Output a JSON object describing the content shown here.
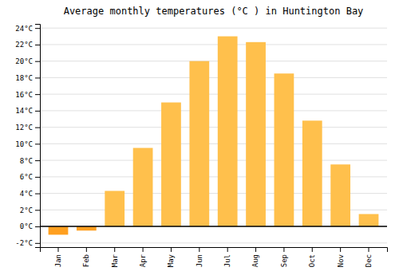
{
  "chart_data": {
    "type": "bar",
    "title": "Average monthly temperatures (°C ) in Huntington Bay",
    "categories": [
      "Jan",
      "Feb",
      "Mar",
      "Apr",
      "May",
      "Jun",
      "Jul",
      "Aug",
      "Sep",
      "Oct",
      "Nov",
      "Dec"
    ],
    "values": [
      -1.0,
      -0.5,
      4.3,
      9.5,
      15.0,
      20.0,
      23.0,
      22.3,
      18.5,
      12.8,
      7.5,
      1.5
    ],
    "colors": [
      "#FFA020",
      "#FFA020",
      "#FFC04C",
      "#FFC04C",
      "#FFC04C",
      "#FFC04C",
      "#FFC04C",
      "#FFC04C",
      "#FFC04C",
      "#FFC04C",
      "#FFC04C",
      "#FFC04C"
    ],
    "ylim": [
      -2.5,
      24.5
    ],
    "yticks": [
      {
        "value": -2,
        "label": "-2°C"
      },
      {
        "value": 0,
        "label": "0°C"
      },
      {
        "value": 2,
        "label": "2°C"
      },
      {
        "value": 4,
        "label": "4°C"
      },
      {
        "value": 6,
        "label": "6°C"
      },
      {
        "value": 8,
        "label": "8°C"
      },
      {
        "value": 10,
        "label": "10°C"
      },
      {
        "value": 12,
        "label": "12°C"
      },
      {
        "value": 14,
        "label": "14°C"
      },
      {
        "value": 16,
        "label": "16°C"
      },
      {
        "value": 18,
        "label": "18°C"
      },
      {
        "value": 20,
        "label": "20°C"
      },
      {
        "value": 22,
        "label": "22°C"
      },
      {
        "value": 24,
        "label": "24°C"
      }
    ],
    "grid": true
  }
}
